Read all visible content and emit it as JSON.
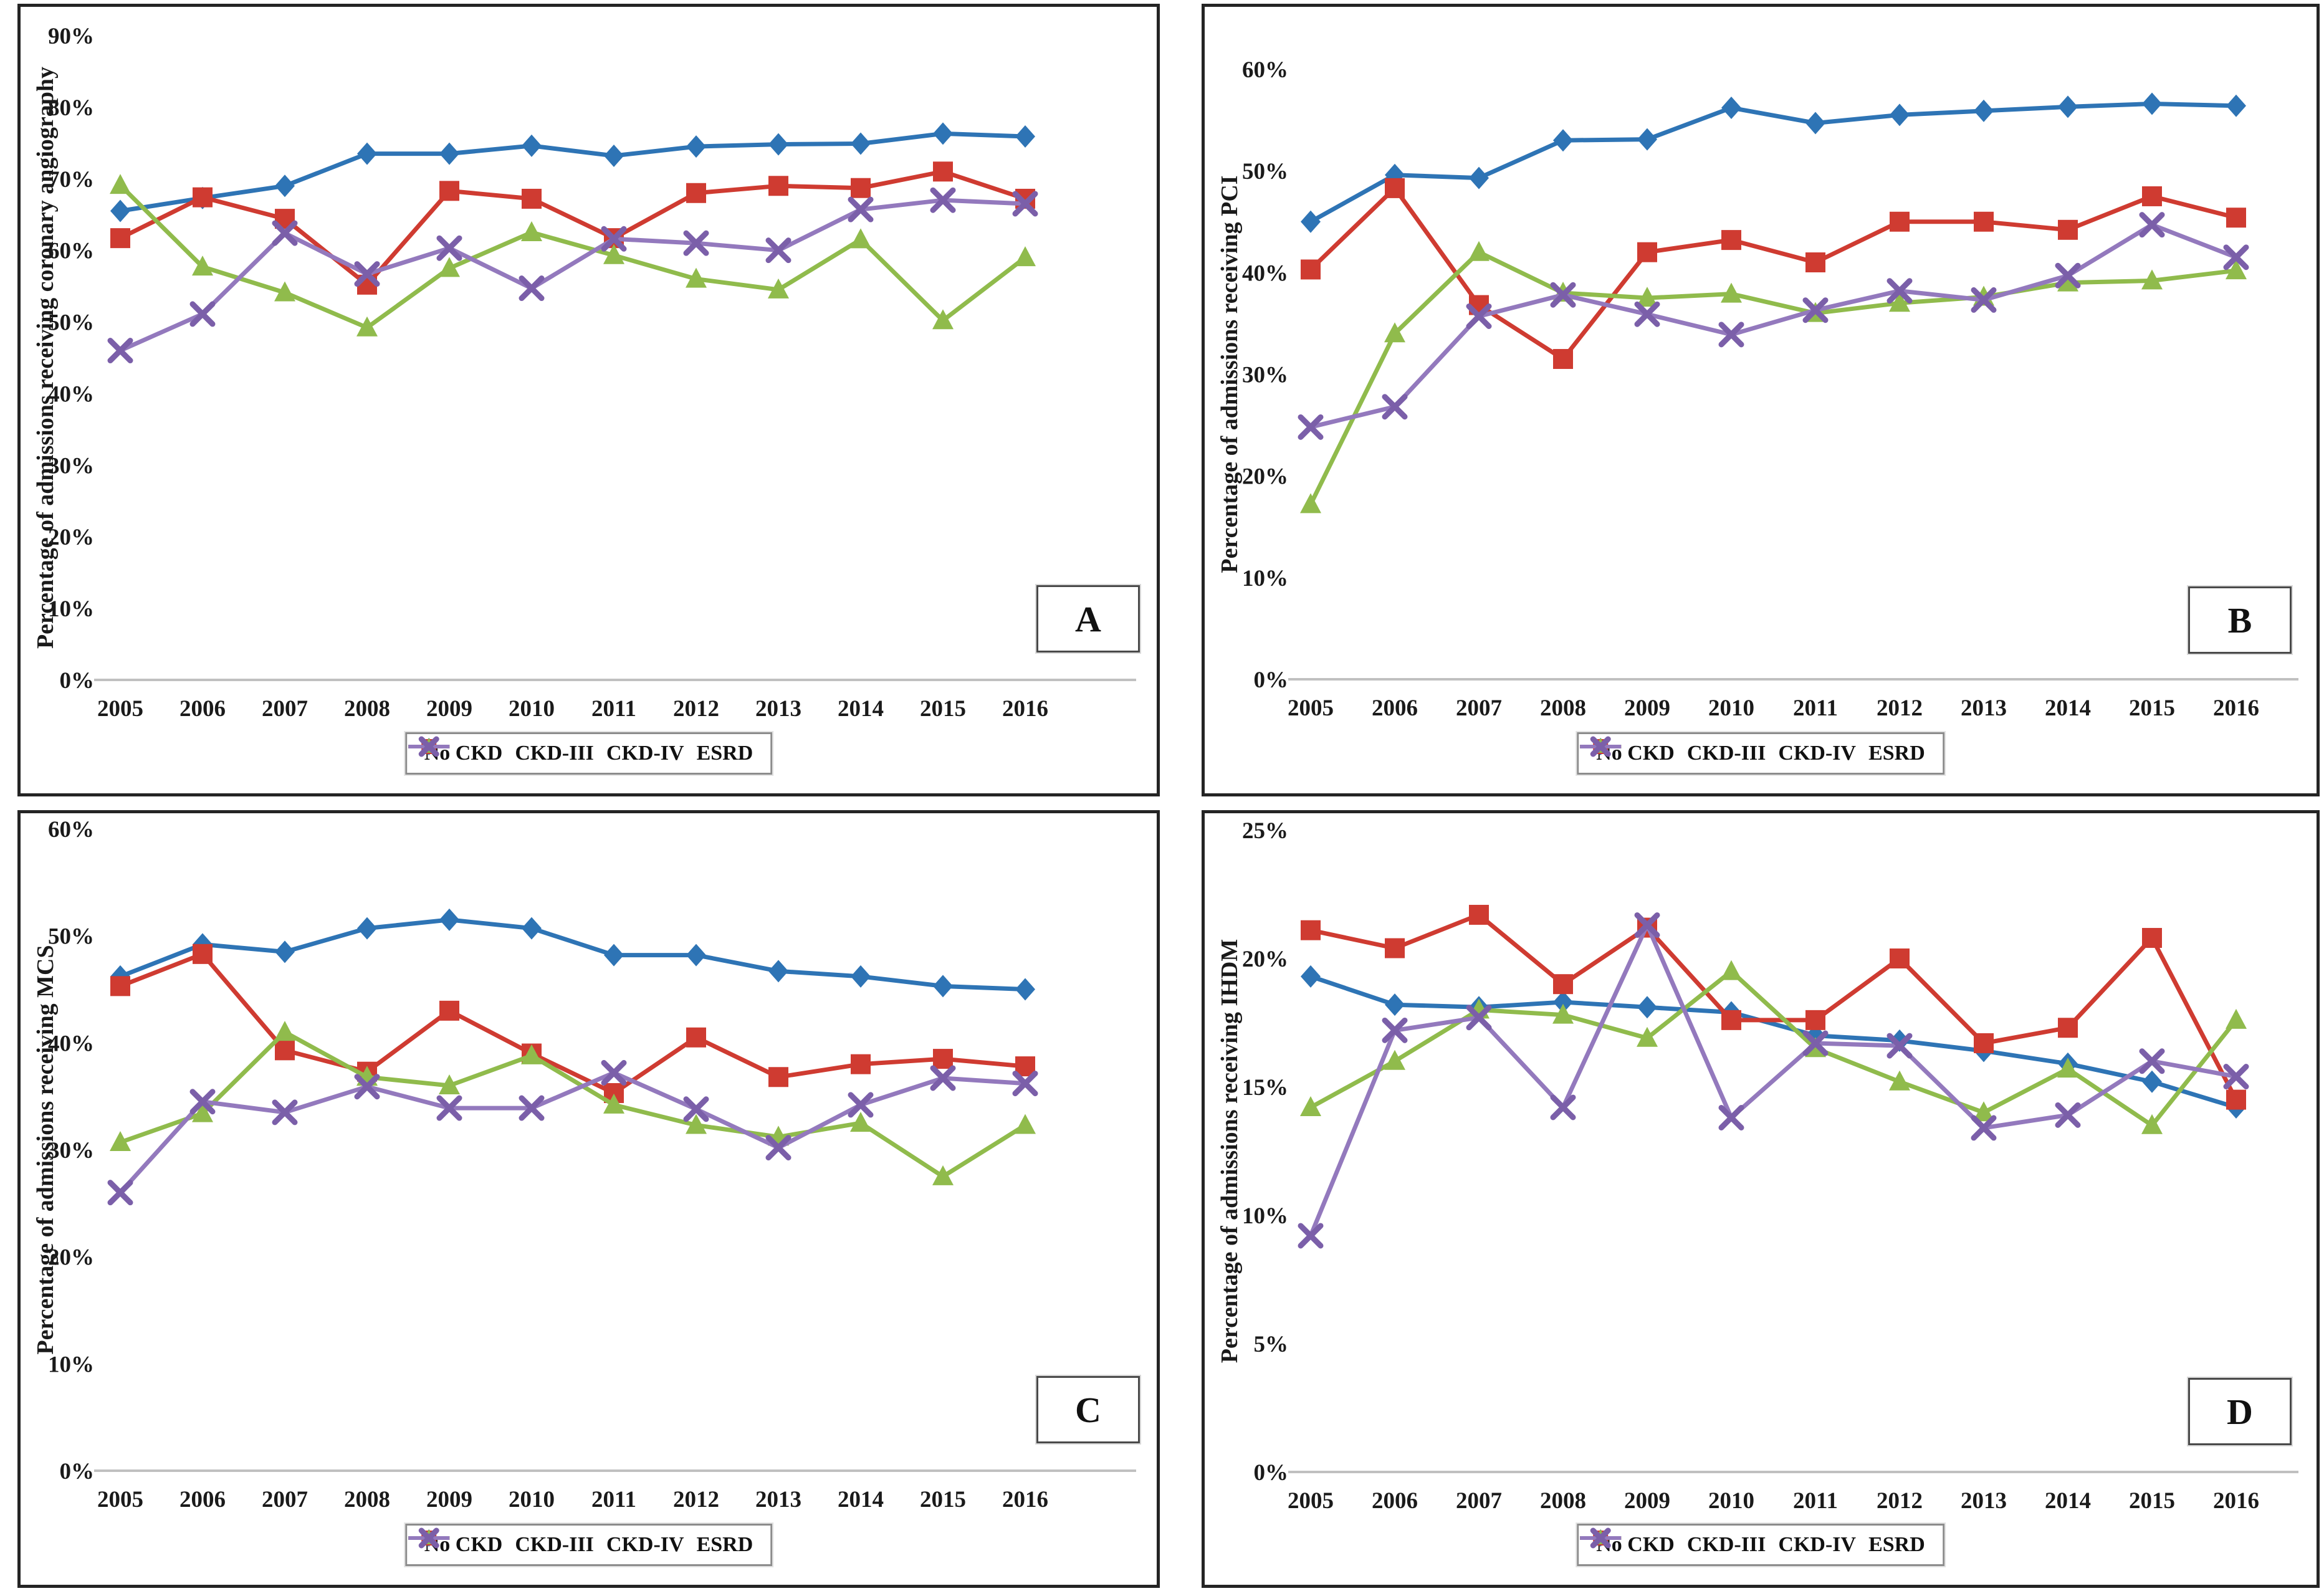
{
  "figure": {
    "background": "#ffffff",
    "panel_border_color": "#242424",
    "axis_line_color": "#c0c0c0",
    "text_color": "#1a1a1a"
  },
  "legend": {
    "position": "bottom-center",
    "items": [
      {
        "label": "No CKD",
        "marker": "diamond",
        "color": "#2E74B5",
        "line_color": "#2E74B5"
      },
      {
        "label": "CKD-III",
        "marker": "square",
        "color": "#CF3B31",
        "line_color": "#CF3B31"
      },
      {
        "label": "CKD-IV",
        "marker": "triangle",
        "color": "#90BB4C",
        "line_color": "#90BB4C"
      },
      {
        "label": "ESRD",
        "marker": "x",
        "color": "#7B5FA9",
        "line_color": "#9379BD"
      }
    ]
  },
  "chart_data": [
    {
      "panel_label": "A",
      "type": "line",
      "title": "",
      "ylabel": "Percentage of admissions receiving coronary angiography",
      "xlabel": "",
      "ylim": [
        0,
        90
      ],
      "ytick_step": 10,
      "grid": false,
      "legend_position": "bottom",
      "x": [
        2005,
        2006,
        2007,
        2008,
        2009,
        2010,
        2011,
        2012,
        2013,
        2014,
        2015,
        2016
      ],
      "series": [
        {
          "name": "No CKD",
          "values": [
            65.5,
            67.3,
            69.0,
            73.5,
            73.5,
            74.6,
            73.2,
            74.5,
            74.8,
            74.9,
            76.3,
            75.9
          ]
        },
        {
          "name": "CKD-III",
          "values": [
            61.7,
            67.4,
            64.4,
            55.2,
            68.3,
            67.2,
            61.7,
            68.0,
            69.0,
            68.7,
            71.0,
            67.2
          ]
        },
        {
          "name": "CKD-IV",
          "values": [
            69.1,
            57.7,
            54.1,
            49.2,
            57.5,
            62.5,
            59.3,
            56.0,
            54.5,
            61.5,
            50.2,
            59.0
          ]
        },
        {
          "name": "ESRD",
          "values": [
            46.0,
            51.1,
            62.4,
            56.7,
            60.3,
            54.7,
            61.6,
            61.0,
            60.0,
            65.7,
            67.0,
            66.5
          ]
        }
      ]
    },
    {
      "panel_label": "B",
      "type": "line",
      "title": "",
      "ylabel": "Percentage of admissions receiving PCI",
      "xlabel": "",
      "ylim": [
        0,
        60
      ],
      "ytick_step": 10,
      "grid": false,
      "legend_position": "bottom",
      "x": [
        2005,
        2006,
        2007,
        2008,
        2009,
        2010,
        2011,
        2012,
        2013,
        2014,
        2015,
        2016
      ],
      "series": [
        {
          "name": "No CKD",
          "values": [
            45.0,
            49.6,
            49.3,
            53.0,
            53.1,
            56.2,
            54.7,
            55.5,
            55.9,
            56.3,
            56.6,
            56.4
          ]
        },
        {
          "name": "CKD-III",
          "values": [
            40.3,
            48.3,
            36.8,
            31.5,
            42.0,
            43.2,
            41.0,
            45.0,
            45.0,
            44.2,
            47.5,
            45.4
          ]
        },
        {
          "name": "CKD-IV",
          "values": [
            17.2,
            34.0,
            42.0,
            38.0,
            37.5,
            37.9,
            36.0,
            37.0,
            37.6,
            39.0,
            39.2,
            40.2
          ]
        },
        {
          "name": "ESRD",
          "values": [
            24.8,
            26.8,
            35.7,
            37.8,
            35.9,
            33.9,
            36.3,
            38.2,
            37.3,
            39.7,
            44.7,
            41.5
          ]
        }
      ]
    },
    {
      "panel_label": "C",
      "type": "line",
      "title": "",
      "ylabel": "Percentage of admissions receiving MCS",
      "xlabel": "",
      "ylim": [
        0,
        60
      ],
      "ytick_step": 10,
      "grid": false,
      "legend_position": "bottom",
      "x": [
        2005,
        2006,
        2007,
        2008,
        2009,
        2010,
        2011,
        2012,
        2013,
        2014,
        2015,
        2016
      ],
      "series": [
        {
          "name": "No CKD",
          "values": [
            46.2,
            49.2,
            48.5,
            50.7,
            51.5,
            50.7,
            48.2,
            48.2,
            46.7,
            46.2,
            45.3,
            45.0
          ]
        },
        {
          "name": "CKD-III",
          "values": [
            45.3,
            48.3,
            39.3,
            37.3,
            43.0,
            39.0,
            35.3,
            40.5,
            36.8,
            38.0,
            38.5,
            37.8
          ]
        },
        {
          "name": "CKD-IV",
          "values": [
            30.7,
            33.4,
            41.0,
            36.8,
            36.0,
            38.8,
            34.2,
            32.3,
            31.2,
            32.5,
            27.5,
            32.3
          ]
        },
        {
          "name": "ESRD",
          "values": [
            26.0,
            34.5,
            33.5,
            35.9,
            33.9,
            33.9,
            37.2,
            33.8,
            30.2,
            34.2,
            36.7,
            36.2
          ]
        }
      ]
    },
    {
      "panel_label": "D",
      "type": "line",
      "title": "",
      "ylabel": "Percentage of admissions receiving IHDM",
      "xlabel": "",
      "ylim": [
        0,
        25
      ],
      "ytick_step": 5,
      "grid": false,
      "legend_position": "bottom",
      "x": [
        2005,
        2006,
        2007,
        2008,
        2009,
        2010,
        2011,
        2012,
        2013,
        2014,
        2015,
        2016
      ],
      "series": [
        {
          "name": "No CKD",
          "values": [
            19.3,
            18.2,
            18.1,
            18.3,
            18.1,
            17.9,
            17.0,
            16.8,
            16.4,
            15.9,
            15.2,
            14.2
          ]
        },
        {
          "name": "CKD-III",
          "values": [
            21.1,
            20.4,
            21.7,
            19.0,
            21.2,
            17.6,
            17.6,
            20.0,
            16.7,
            17.3,
            20.8,
            14.5
          ]
        },
        {
          "name": "CKD-IV",
          "values": [
            14.2,
            16.0,
            18.0,
            17.8,
            16.9,
            19.5,
            16.5,
            15.2,
            14.0,
            15.7,
            13.5,
            17.6
          ]
        },
        {
          "name": "ESRD",
          "values": [
            9.2,
            17.2,
            17.7,
            14.2,
            21.3,
            13.8,
            16.7,
            16.6,
            13.4,
            13.9,
            16.0,
            15.4
          ]
        }
      ]
    }
  ]
}
